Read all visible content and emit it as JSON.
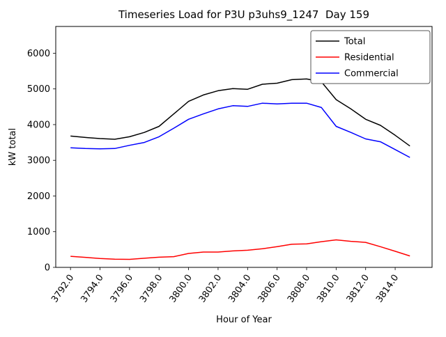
{
  "chart_data": {
    "type": "line",
    "title": "Timeseries Load for P3U p3uhs9_1247  Day 159",
    "xlabel": "Hour of Year",
    "ylabel": "kW total",
    "grid": false,
    "legend_position": "upper right",
    "xlim": [
      3791.0,
      3816.5
    ],
    "ylim": [
      0,
      6750
    ],
    "xticks": [
      3792,
      3794,
      3796,
      3798,
      3800,
      3802,
      3804,
      3806,
      3808,
      3810,
      3812,
      3814
    ],
    "xtick_labels": [
      "3792.0",
      "3794.0",
      "3796.0",
      "3798.0",
      "3800.0",
      "3802.0",
      "3804.0",
      "3806.0",
      "3808.0",
      "3810.0",
      "3812.0",
      "3814.0"
    ],
    "yticks": [
      0,
      1000,
      2000,
      3000,
      4000,
      5000,
      6000
    ],
    "x": [
      3792,
      3793,
      3794,
      3795,
      3796,
      3797,
      3798,
      3799,
      3800,
      3801,
      3802,
      3803,
      3804,
      3805,
      3806,
      3807,
      3808,
      3809,
      3810,
      3811,
      3812,
      3813,
      3814,
      3815
    ],
    "series": [
      {
        "name": "Total",
        "color": "#000000",
        "values": [
          3680,
          3640,
          3610,
          3590,
          3660,
          3780,
          3950,
          4300,
          4650,
          4830,
          4950,
          5010,
          4990,
          5130,
          5160,
          5260,
          5280,
          5200,
          4700,
          4440,
          4150,
          3980,
          3700,
          3400
        ]
      },
      {
        "name": "Residential",
        "color": "#ff0000",
        "values": [
          310,
          280,
          250,
          230,
          225,
          255,
          285,
          300,
          390,
          430,
          430,
          460,
          480,
          520,
          580,
          650,
          660,
          720,
          770,
          730,
          700,
          580,
          450,
          320
        ]
      },
      {
        "name": "Commercial",
        "color": "#0000ff",
        "values": [
          3350,
          3330,
          3320,
          3330,
          3420,
          3500,
          3660,
          3900,
          4150,
          4300,
          4440,
          4530,
          4510,
          4600,
          4580,
          4600,
          4600,
          4480,
          3950,
          3780,
          3600,
          3520,
          3300,
          3080
        ]
      }
    ]
  }
}
